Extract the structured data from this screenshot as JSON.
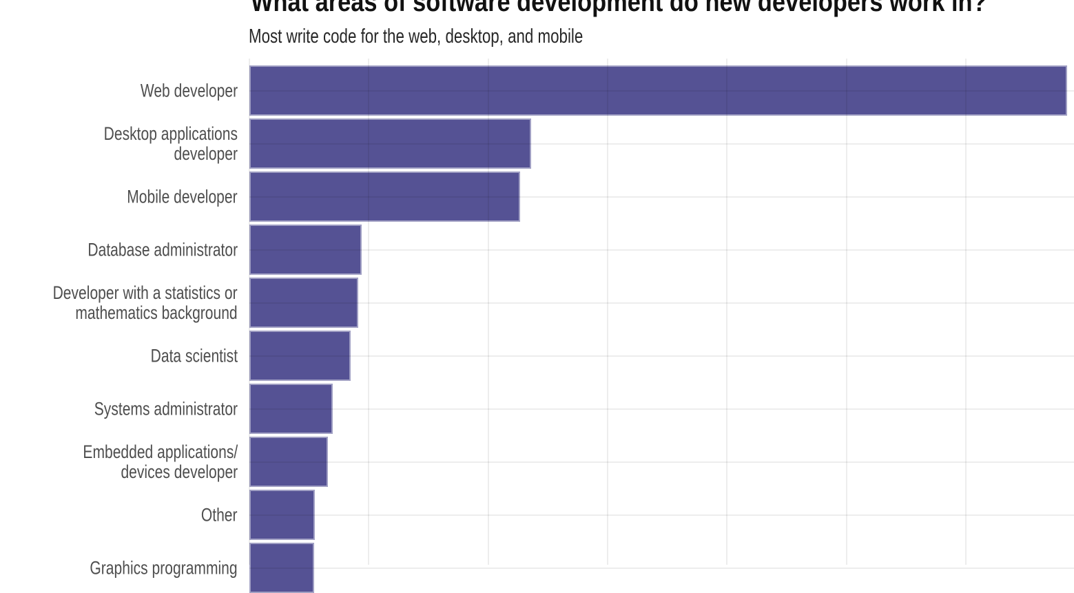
{
  "chart_data": {
    "type": "bar",
    "orientation": "horizontal",
    "title": "What areas of software development do new developers work in?",
    "subtitle": "Most write code for the web, desktop, and mobile",
    "categories": [
      "Web developer",
      "Desktop applications developer",
      "Mobile developer",
      "Database administrator",
      "Developer with a statistics or\nmathematics background",
      "Data scientist",
      "Systems administrator",
      "Embedded applications/\ndevices developer",
      "Other",
      "Graphics programming"
    ],
    "values": [
      68.5,
      23.6,
      22.7,
      9.4,
      9.1,
      8.5,
      7.0,
      6.6,
      5.5,
      5.4
    ],
    "xlabel": "",
    "ylabel": "",
    "xlim": [
      0,
      69
    ],
    "gridline_step": 10,
    "grid": "on",
    "legend": "none",
    "colors": {
      "bar": "#555294",
      "bar_border": "rgba(255,255,255,0.45)",
      "gridline": "rgba(0,0,0,0.07)",
      "title": "#111111",
      "subtitle": "#262626",
      "category_label": "#4e4e4e",
      "background": "#ffffff"
    }
  }
}
